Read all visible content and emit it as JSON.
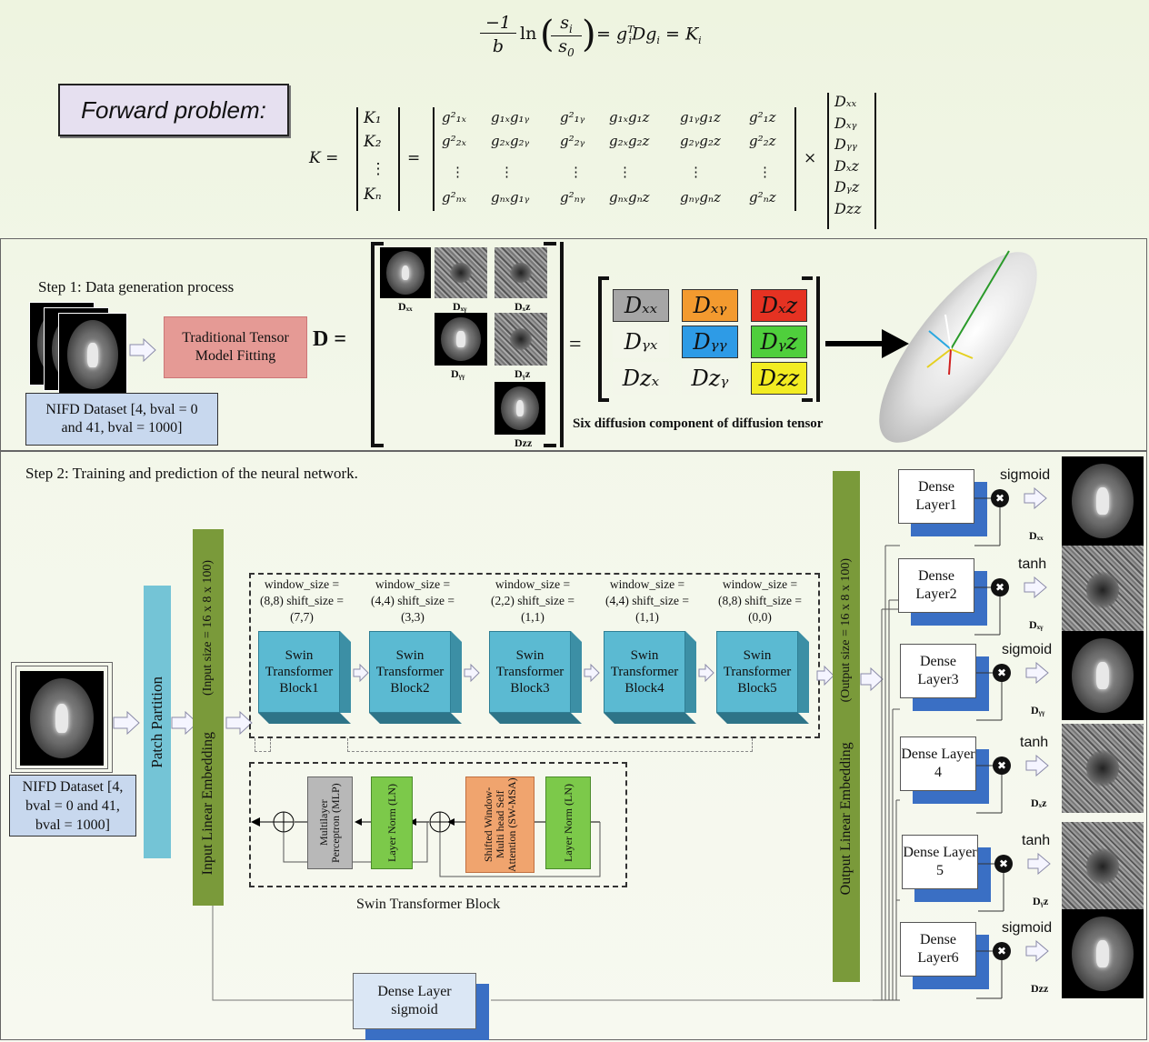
{
  "equation_top": {
    "lhs_num": "−1",
    "lhs_den": "b",
    "ln": "ln",
    "frac_num": "s",
    "frac_num_sub": "i",
    "frac_den": "s",
    "frac_den_sub": "0",
    "rhs": "= g",
    "rhs_sup": "T",
    "rhs_sub": "i",
    "rhs_mid": "Dg",
    "rhs_mid_sub": "i",
    "rhs_end": "= K",
    "rhs_end_sub": "i"
  },
  "forward_problem": {
    "label": "Forward problem:"
  },
  "matrix_eq": {
    "k_label": "K =",
    "k_vector": [
      "K₁",
      "K₂",
      "⋮",
      "Kₙ"
    ],
    "g_rows": [
      [
        "g²₁ₓ",
        "g₁ₓg₁ᵧ",
        "g²₁ᵧ",
        "g₁ₓg₁z",
        "g₁ᵧg₁z",
        "g²₁z"
      ],
      [
        "g²₂ₓ",
        "g₂ₓg₂ᵧ",
        "g²₂ᵧ",
        "g₂ₓg₂z",
        "g₂ᵧg₂z",
        "g²₂z"
      ],
      [
        "⋮",
        "⋮",
        "⋮",
        "⋮",
        "⋮",
        "⋮"
      ],
      [
        "g²ₙₓ",
        "gₙₓg₁ᵧ",
        "g²ₙᵧ",
        "gₙₓgₙz",
        "gₙᵧgₙz",
        "g²ₙz"
      ]
    ],
    "times": "×",
    "equals": "=",
    "d_vector": [
      "Dₓₓ",
      "Dₓᵧ",
      "Dᵧᵧ",
      "Dₓz",
      "Dᵧz",
      "Dzz"
    ]
  },
  "step1": {
    "title": "Step 1:  Data generation process",
    "dataset": "NIFD Dataset [4, bval = 0 and 41, bval = 1000]",
    "fitting": "Traditional Tensor Model Fitting",
    "d_eq": "D =",
    "captions": [
      "Dₓₓ",
      "Dₓᵧ",
      "Dₓz",
      "Dᵧᵧ",
      "Dᵧz",
      "Dzz"
    ],
    "tensor_cells": [
      {
        "label": "Dₓₓ",
        "color": "#a6a6a6"
      },
      {
        "label": "Dₓᵧ",
        "color": "#f39a2f"
      },
      {
        "label": "Dₓz",
        "color": "#e53222"
      },
      {
        "label": "Dᵧₓ",
        "color": "#f3f6ea"
      },
      {
        "label": "Dᵧᵧ",
        "color": "#2e9be6"
      },
      {
        "label": "Dᵧz",
        "color": "#4fcf3c"
      },
      {
        "label": "Dzₓ",
        "color": "#f3f6ea"
      },
      {
        "label": "Dzᵧ",
        "color": "#f3f6ea"
      },
      {
        "label": "Dzz",
        "color": "#f2ec22"
      }
    ],
    "tensor_eq": "=",
    "caption": "Six diffusion component of diffusion tensor"
  },
  "step2": {
    "title": "Step 2:  Training and prediction of the neural network.",
    "dataset": "NIFD Dataset [4, bval = 0 and 41, bval = 1000]",
    "patch_partition": "Patch Partition",
    "input_embedding": "Input Linear Embedding",
    "input_size": "(Input size = 16 x 8 x 100)",
    "output_embedding": "Output Linear Embedding",
    "output_size": "(Output size = 16 x 8 x 100)",
    "swin_blocks": [
      {
        "params": "window_size = (8,8) shift_size = (7,7)",
        "label": "Swin Transformer Block1"
      },
      {
        "params": "window_size = (4,4) shift_size = (3,3)",
        "label": "Swin Transformer Block2"
      },
      {
        "params": "window_size = (2,2) shift_size = (1,1)",
        "label": "Swin Transformer Block3"
      },
      {
        "params": "window_size = (4,4) shift_size = (1,1)",
        "label": "Swin Transformer Block4"
      },
      {
        "params": "window_size = (8,8) shift_size = (0,0)",
        "label": "Swin Transformer Block5"
      }
    ],
    "detail": {
      "mlp": "Multilayer Perceptron (MLP)",
      "ln1": "Layer Norm (LN)",
      "msa": "Shifted Window-Multi head Self Attention (SW-MSA)",
      "ln2": "Layer Norm (LN)",
      "caption": "Swin Transformer Block"
    },
    "dense_bottom": "Dense Layer sigmoid",
    "dense_layers": [
      {
        "label": "Dense Layer1",
        "act": "sigmoid",
        "out": "Dₓₓ"
      },
      {
        "label": "Dense Layer2",
        "act": "tanh",
        "out": "Dₓᵧ"
      },
      {
        "label": "Dense Layer3",
        "act": "sigmoid",
        "out": "Dᵧᵧ"
      },
      {
        "label": "Dense Layer 4",
        "act": "tanh",
        "out": "Dₓz"
      },
      {
        "label": "Dense Layer 5",
        "act": "tanh",
        "out": "Dᵧz"
      },
      {
        "label": "Dense Layer6",
        "act": "sigmoid",
        "out": "Dzz"
      }
    ],
    "multiply_symbol": "✖"
  },
  "colors": {
    "patch": "#74c4d6",
    "embed": "#7a9a3a",
    "fitting": "#e59a95",
    "dataset_box": "#c8d8ee",
    "swin": "#5bbad2",
    "mlp": "#b8b8b8",
    "ln": "#7cc94a",
    "msa": "#f0a46e",
    "dense_back": "#3a6fc4"
  }
}
